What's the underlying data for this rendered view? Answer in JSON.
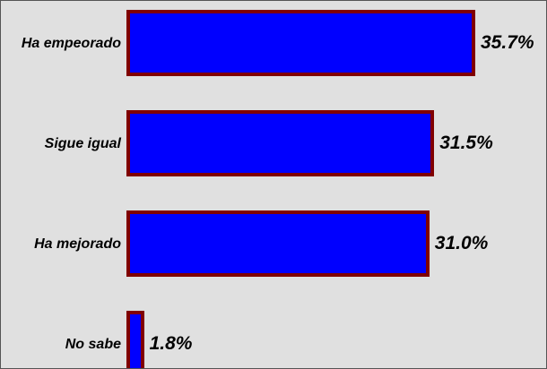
{
  "chart_data": {
    "type": "bar",
    "orientation": "horizontal",
    "categories": [
      "Ha empeorado",
      "Sigue igual",
      "Ha mejorado",
      "No sabe"
    ],
    "values": [
      35.7,
      31.5,
      31.0,
      1.8
    ],
    "value_labels": [
      "35.7%",
      "31.5%",
      "31.0%",
      "1.8%"
    ],
    "color": "#0000ff",
    "edge_color": "#800000"
  }
}
